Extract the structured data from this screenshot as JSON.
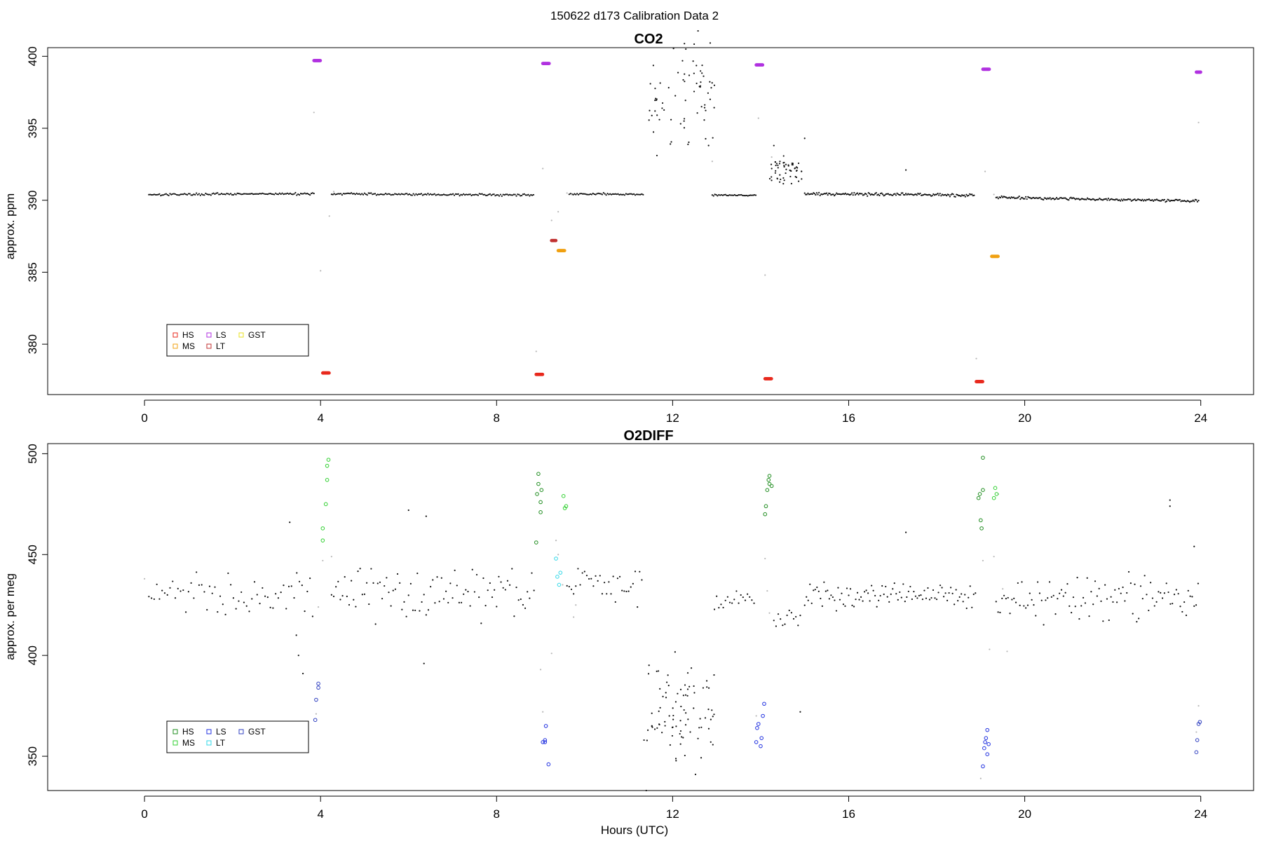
{
  "figure_title": "150622   d173   Calibration Data 2",
  "chart_data": [
    {
      "type": "scatter",
      "title": "CO2",
      "xlabel": "",
      "ylabel": "approx. ppm",
      "xlim": [
        -2.2,
        25.2
      ],
      "ylim": [
        376.5,
        400.6
      ],
      "x_ticks": [
        0,
        4,
        8,
        12,
        16,
        20,
        24
      ],
      "y_ticks": [
        380,
        385,
        390,
        395,
        400
      ],
      "legend": {
        "position": "bottom-left",
        "entries": [
          {
            "label": "HS",
            "color": "#e8281c"
          },
          {
            "label": "LS",
            "color": "#b030e0"
          },
          {
            "label": "GST",
            "color": "#e8e020"
          },
          {
            "label": "MS",
            "color": "#f0a010"
          },
          {
            "label": "LT",
            "color": "#c03030"
          }
        ]
      },
      "ambient": {
        "color": "#111111",
        "segments": [
          {
            "x0": 0.1,
            "x1": 3.85,
            "y0": 390.4,
            "y1": 390.45,
            "noise": 0.07,
            "step": 0.03
          },
          {
            "x0": 4.25,
            "x1": 8.85,
            "y0": 390.45,
            "y1": 390.35,
            "noise": 0.07,
            "step": 0.03
          },
          {
            "x0": 9.65,
            "x1": 11.35,
            "y0": 390.45,
            "y1": 390.4,
            "noise": 0.07,
            "step": 0.03
          },
          {
            "x0": 12.9,
            "x1": 13.9,
            "y0": 390.35,
            "y1": 390.35,
            "noise": 0.05,
            "step": 0.03
          },
          {
            "x0": 15.0,
            "x1": 18.85,
            "y0": 390.45,
            "y1": 390.35,
            "noise": 0.1,
            "step": 0.025
          },
          {
            "x0": 19.35,
            "x1": 23.95,
            "y0": 390.2,
            "y1": 389.95,
            "noise": 0.09,
            "step": 0.025
          }
        ],
        "scatter_blocks": [
          {
            "x0": 11.4,
            "x1": 12.95,
            "y_center": 397.5,
            "y_spread": 4.2,
            "n": 70
          },
          {
            "x0": 14.2,
            "x1": 14.95,
            "y_center": 392.0,
            "y_spread": 1.1,
            "n": 55
          }
        ],
        "points": [
          {
            "x": 17.3,
            "y": 392.1
          },
          {
            "x": 15.0,
            "y": 394.3
          },
          {
            "x": 14.3,
            "y": 393.8
          },
          {
            "x": 12.3,
            "y": 400.5
          },
          {
            "x": 11.6,
            "y": 396.2
          },
          {
            "x": 11.7,
            "y": 395.6
          }
        ]
      },
      "transition_points": {
        "color": "#b8b8b8",
        "points": [
          {
            "x": 3.85,
            "y": 396.1
          },
          {
            "x": 4.0,
            "y": 385.1
          },
          {
            "x": 4.2,
            "y": 388.9
          },
          {
            "x": 4.3,
            "y": 390.6
          },
          {
            "x": 8.9,
            "y": 379.5
          },
          {
            "x": 9.05,
            "y": 392.2
          },
          {
            "x": 9.25,
            "y": 388.6
          },
          {
            "x": 9.4,
            "y": 389.2
          },
          {
            "x": 9.6,
            "y": 390.5
          },
          {
            "x": 13.95,
            "y": 395.7
          },
          {
            "x": 14.1,
            "y": 384.8
          },
          {
            "x": 14.25,
            "y": 393.0
          },
          {
            "x": 18.9,
            "y": 379.0
          },
          {
            "x": 19.1,
            "y": 392.0
          },
          {
            "x": 19.3,
            "y": 390.4
          },
          {
            "x": 23.95,
            "y": 395.4
          },
          {
            "x": 12.9,
            "y": 392.7
          },
          {
            "x": 9.7,
            "y": 390.4
          },
          {
            "x": 19.4,
            "y": 390.2
          }
        ]
      },
      "calibrations": [
        {
          "name": "LS",
          "color": "#b030e0",
          "x0": 3.85,
          "x1": 4.0,
          "y": 399.7
        },
        {
          "name": "HS",
          "color": "#e8281c",
          "x0": 4.05,
          "x1": 4.2,
          "y": 378.0
        },
        {
          "name": "HS",
          "color": "#e8281c",
          "x0": 8.9,
          "x1": 9.05,
          "y": 377.9
        },
        {
          "name": "LS",
          "color": "#b030e0",
          "x0": 9.05,
          "x1": 9.2,
          "y": 399.5
        },
        {
          "name": "LT",
          "color": "#c03030",
          "x0": 9.25,
          "x1": 9.35,
          "y": 387.2
        },
        {
          "name": "MS",
          "color": "#f0a010",
          "x0": 9.4,
          "x1": 9.55,
          "y": 386.5
        },
        {
          "name": "LS",
          "color": "#b030e0",
          "x0": 13.9,
          "x1": 14.05,
          "y": 399.4
        },
        {
          "name": "HS",
          "color": "#e8281c",
          "x0": 14.1,
          "x1": 14.25,
          "y": 377.6
        },
        {
          "name": "HS",
          "color": "#e8281c",
          "x0": 18.9,
          "x1": 19.05,
          "y": 377.4
        },
        {
          "name": "LS",
          "color": "#b030e0",
          "x0": 19.05,
          "x1": 19.2,
          "y": 399.1
        },
        {
          "name": "MS",
          "color": "#f0a010",
          "x0": 19.25,
          "x1": 19.4,
          "y": 386.1
        },
        {
          "name": "LS",
          "color": "#b030e0",
          "x0": 23.9,
          "x1": 24.0,
          "y": 398.9
        }
      ]
    },
    {
      "type": "scatter",
      "title": "O2DIFF",
      "xlabel": "Hours (UTC)",
      "ylabel": "approx. per meg",
      "xlim": [
        -2.2,
        25.2
      ],
      "ylim": [
        333,
        505
      ],
      "x_ticks": [
        0,
        4,
        8,
        12,
        16,
        20,
        24
      ],
      "y_ticks": [
        350,
        400,
        450,
        500
      ],
      "legend": {
        "position": "bottom-left",
        "entries": [
          {
            "label": "HS",
            "color": "#1e8c1e"
          },
          {
            "label": "LS",
            "color": "#2030e0"
          },
          {
            "label": "GST",
            "color": "#3040c0"
          },
          {
            "label": "MS",
            "color": "#30d030"
          },
          {
            "label": "LT",
            "color": "#30d8e8"
          }
        ]
      },
      "ambient": {
        "color": "#111111",
        "segments": [
          {
            "x0": 0.1,
            "x1": 3.85,
            "center": 430,
            "spread": 11,
            "step": 0.06
          },
          {
            "x0": 4.25,
            "x1": 8.85,
            "center": 432,
            "spread": 13,
            "step": 0.05
          },
          {
            "x0": 9.6,
            "x1": 11.35,
            "center": 435,
            "spread": 9,
            "step": 0.05
          },
          {
            "x0": 12.95,
            "x1": 13.9,
            "center": 428,
            "spread": 6,
            "step": 0.05
          },
          {
            "x0": 14.3,
            "x1": 14.95,
            "center": 420,
            "spread": 7,
            "step": 0.05
          },
          {
            "x0": 15.0,
            "x1": 18.9,
            "center": 430,
            "spread": 6,
            "step": 0.04
          },
          {
            "x0": 19.35,
            "x1": 23.95,
            "center": 428,
            "spread": 11,
            "step": 0.045
          }
        ],
        "scatter_blocks": [
          {
            "x0": 11.4,
            "x1": 12.95,
            "y_center": 370,
            "y_spread": 30,
            "n": 85
          }
        ],
        "points": [
          {
            "x": 3.3,
            "y": 466
          },
          {
            "x": 3.45,
            "y": 410
          },
          {
            "x": 3.5,
            "y": 400
          },
          {
            "x": 3.6,
            "y": 391
          },
          {
            "x": 6.0,
            "y": 472
          },
          {
            "x": 6.4,
            "y": 469
          },
          {
            "x": 6.35,
            "y": 396
          },
          {
            "x": 17.3,
            "y": 461
          },
          {
            "x": 14.9,
            "y": 372
          },
          {
            "x": 11.35,
            "y": 358
          },
          {
            "x": 11.4,
            "y": 333
          },
          {
            "x": 23.3,
            "y": 477
          },
          {
            "x": 23.3,
            "y": 474
          },
          {
            "x": 23.85,
            "y": 454
          }
        ]
      },
      "transition_points": {
        "color": "#b8b8b8",
        "points": [
          {
            "x": 0.0,
            "y": 438
          },
          {
            "x": 3.95,
            "y": 424
          },
          {
            "x": 3.9,
            "y": 371
          },
          {
            "x": 4.05,
            "y": 447
          },
          {
            "x": 4.25,
            "y": 449
          },
          {
            "x": 9.0,
            "y": 393
          },
          {
            "x": 9.05,
            "y": 372
          },
          {
            "x": 9.25,
            "y": 401
          },
          {
            "x": 9.35,
            "y": 457
          },
          {
            "x": 9.5,
            "y": 435
          },
          {
            "x": 9.75,
            "y": 419
          },
          {
            "x": 9.8,
            "y": 425
          },
          {
            "x": 14.1,
            "y": 448
          },
          {
            "x": 14.15,
            "y": 432
          },
          {
            "x": 13.9,
            "y": 370
          },
          {
            "x": 19.0,
            "y": 339
          },
          {
            "x": 19.05,
            "y": 447
          },
          {
            "x": 19.2,
            "y": 403
          },
          {
            "x": 19.3,
            "y": 449
          },
          {
            "x": 19.4,
            "y": 480
          },
          {
            "x": 19.5,
            "y": 433
          },
          {
            "x": 19.6,
            "y": 402
          },
          {
            "x": 23.95,
            "y": 375
          },
          {
            "x": 23.9,
            "y": 362
          },
          {
            "x": 9.4,
            "y": 450
          },
          {
            "x": 14.2,
            "y": 421
          }
        ]
      },
      "calibrations": [
        {
          "name": "GST",
          "color": "#3040c0",
          "points": [
            [
              3.95,
              386
            ],
            [
              3.95,
              384
            ],
            [
              3.9,
              378
            ],
            [
              3.88,
              368
            ]
          ]
        },
        {
          "name": "MS",
          "color": "#30d030",
          "points": [
            [
              4.05,
              457
            ],
            [
              4.05,
              463
            ],
            [
              4.12,
              475
            ],
            [
              4.15,
              487
            ],
            [
              4.18,
              497
            ],
            [
              4.15,
              494
            ]
          ]
        },
        {
          "name": "HS",
          "color": "#1e8c1e",
          "points": [
            [
              8.9,
              456
            ],
            [
              8.92,
              480
            ],
            [
              8.95,
              485
            ],
            [
              8.95,
              490
            ],
            [
              9.0,
              471
            ],
            [
              9.0,
              476
            ],
            [
              9.02,
              482
            ]
          ]
        },
        {
          "name": "LS",
          "color": "#2030e0",
          "points": [
            [
              9.05,
              357
            ],
            [
              9.1,
              358
            ],
            [
              9.12,
              365
            ],
            [
              9.18,
              346
            ],
            [
              9.1,
              357
            ]
          ]
        },
        {
          "name": "LT",
          "color": "#30d8e8",
          "points": [
            [
              9.35,
              448
            ],
            [
              9.38,
              439
            ],
            [
              9.42,
              435
            ],
            [
              9.45,
              441
            ]
          ]
        },
        {
          "name": "MS",
          "color": "#30d030",
          "points": [
            [
              9.55,
              473
            ],
            [
              9.52,
              479
            ],
            [
              9.58,
              474
            ]
          ]
        },
        {
          "name": "LS",
          "color": "#2030e0",
          "points": [
            [
              13.9,
              357
            ],
            [
              13.92,
              364
            ],
            [
              13.95,
              366
            ],
            [
              14.0,
              355
            ],
            [
              14.02,
              359
            ],
            [
              14.05,
              370
            ],
            [
              14.08,
              376
            ]
          ]
        },
        {
          "name": "HS",
          "color": "#1e8c1e",
          "points": [
            [
              14.1,
              470
            ],
            [
              14.12,
              474
            ],
            [
              14.15,
              482
            ],
            [
              14.18,
              487
            ],
            [
              14.2,
              489
            ],
            [
              14.2,
              485
            ],
            [
              14.25,
              484
            ]
          ]
        },
        {
          "name": "HS",
          "color": "#1e8c1e",
          "points": [
            [
              18.95,
              478
            ],
            [
              18.98,
              480
            ],
            [
              19.0,
              467
            ],
            [
              19.02,
              463
            ],
            [
              19.05,
              482
            ],
            [
              19.05,
              498
            ]
          ]
        },
        {
          "name": "LS",
          "color": "#2030e0",
          "points": [
            [
              19.05,
              345
            ],
            [
              19.08,
              354
            ],
            [
              19.1,
              357
            ],
            [
              19.12,
              359
            ],
            [
              19.15,
              363
            ],
            [
              19.15,
              351
            ],
            [
              19.18,
              356
            ]
          ]
        },
        {
          "name": "MS",
          "color": "#30d030",
          "points": [
            [
              19.3,
              478
            ],
            [
              19.33,
              483
            ],
            [
              19.36,
              480
            ]
          ]
        },
        {
          "name": "GST",
          "color": "#3040c0",
          "points": [
            [
              23.9,
              352
            ],
            [
              23.92,
              358
            ],
            [
              23.95,
              366
            ],
            [
              23.98,
              367
            ]
          ]
        }
      ]
    }
  ]
}
